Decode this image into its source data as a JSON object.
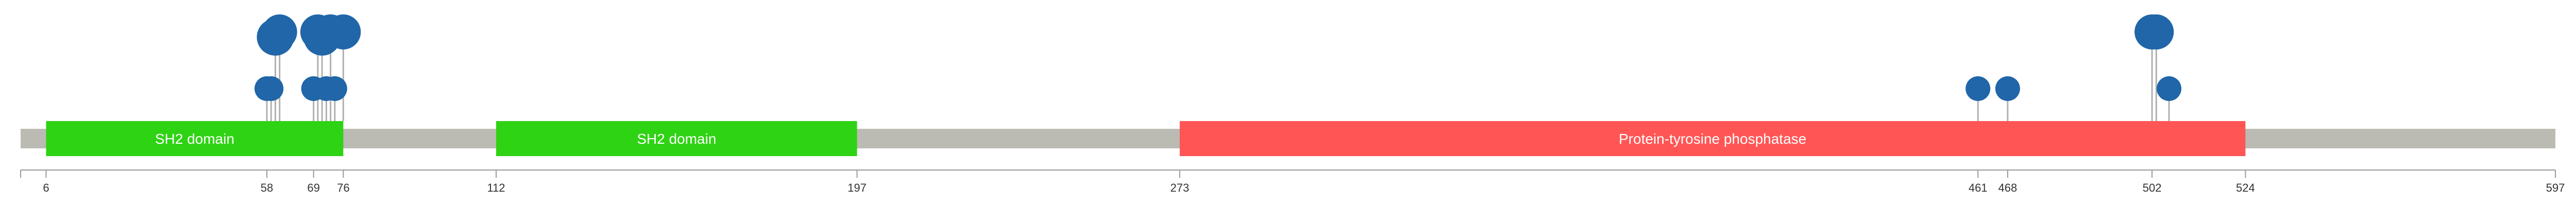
{
  "chart_data": {
    "type": "lollipop",
    "protein_length": 597,
    "domains": [
      {
        "name": "SH2 domain",
        "start": 6,
        "end": 76,
        "color": "#2ed313"
      },
      {
        "name": "SH2 domain",
        "start": 112,
        "end": 197,
        "color": "#2ed313"
      },
      {
        "name": "Protein-tyrosine phosphatase",
        "start": 273,
        "end": 524,
        "color": "#ff5555"
      }
    ],
    "axis_ticks": [
      6,
      58,
      69,
      76,
      112,
      197,
      273,
      461,
      468,
      502,
      524,
      597
    ],
    "mutations": [
      {
        "position": 58,
        "count": 1
      },
      {
        "position": 59,
        "count": 1
      },
      {
        "position": 60,
        "count": 3
      },
      {
        "position": 61,
        "count": 2
      },
      {
        "position": 69,
        "count": 1
      },
      {
        "position": 70,
        "count": 2
      },
      {
        "position": 71,
        "count": 3
      },
      {
        "position": 72,
        "count": 1
      },
      {
        "position": 73,
        "count": 2
      },
      {
        "position": 74,
        "count": 1
      },
      {
        "position": 76,
        "count": 2
      },
      {
        "position": 461,
        "count": 1
      },
      {
        "position": 468,
        "count": 1
      },
      {
        "position": 502,
        "count": 2
      },
      {
        "position": 503,
        "count": 2
      },
      {
        "position": 506,
        "count": 1
      }
    ],
    "colors": {
      "backbone": "#bbbbb3",
      "lollipop": "#2066a8",
      "stem": "#b0b0b0",
      "axis": "#999999"
    }
  }
}
